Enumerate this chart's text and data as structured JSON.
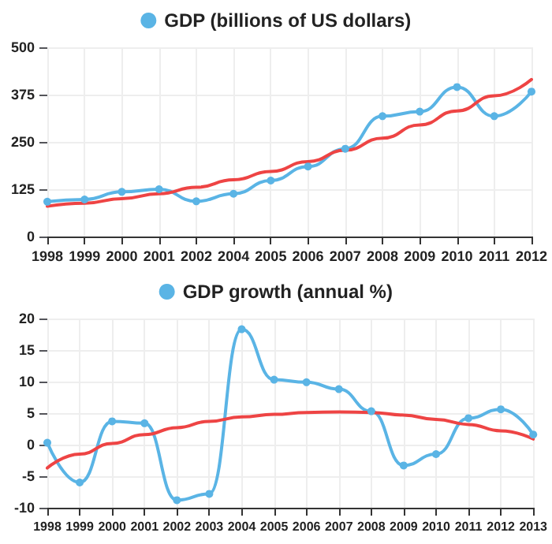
{
  "chart_data": [
    {
      "type": "line",
      "categories": [
        "1998",
        "1999",
        "2000",
        "2001",
        "2002",
        "2004",
        "2005",
        "2006",
        "2007",
        "2008",
        "2009",
        "2010",
        "2011",
        "2012"
      ],
      "series": [
        {
          "name": "GDP (billions of US dollars)",
          "color": "#5ab4e5",
          "marker": "circle",
          "values": [
            92,
            98,
            118,
            125,
            93,
            113,
            148,
            185,
            232,
            318,
            330,
            395,
            318,
            383
          ]
        },
        {
          "color": "#ee4444",
          "marker": "none",
          "values": [
            80,
            88,
            100,
            113,
            130,
            150,
            172,
            198,
            228,
            260,
            295,
            332,
            372,
            415
          ]
        }
      ],
      "ylim": [
        0,
        500
      ],
      "yticks": [
        0,
        125,
        250,
        375,
        500
      ],
      "grid": true,
      "legend": "top"
    },
    {
      "type": "line",
      "categories": [
        "1998",
        "1999",
        "2000",
        "2001",
        "2002",
        "2003",
        "2004",
        "2005",
        "2006",
        "2007",
        "2008",
        "2009",
        "2010",
        "2011",
        "2012",
        "2013"
      ],
      "series": [
        {
          "name": "GDP growth (annual %)",
          "color": "#5ab4e5",
          "marker": "circle",
          "values": [
            0.3,
            -6,
            3.7,
            3.4,
            -8.8,
            -7.8,
            18.3,
            10.3,
            9.9,
            8.8,
            5.3,
            -3.3,
            -1.5,
            4.2,
            5.6,
            1.6
          ]
        },
        {
          "color": "#ee4444",
          "marker": "none",
          "values": [
            -3.7,
            -1.5,
            0.2,
            1.6,
            2.7,
            3.7,
            4.4,
            4.8,
            5.1,
            5.2,
            5.1,
            4.7,
            4.0,
            3.2,
            2.2,
            0.9
          ]
        }
      ],
      "ylim": [
        -10,
        20
      ],
      "yticks": [
        -10,
        -5,
        0,
        5,
        10,
        15,
        20
      ],
      "grid": true,
      "legend": "top"
    }
  ]
}
